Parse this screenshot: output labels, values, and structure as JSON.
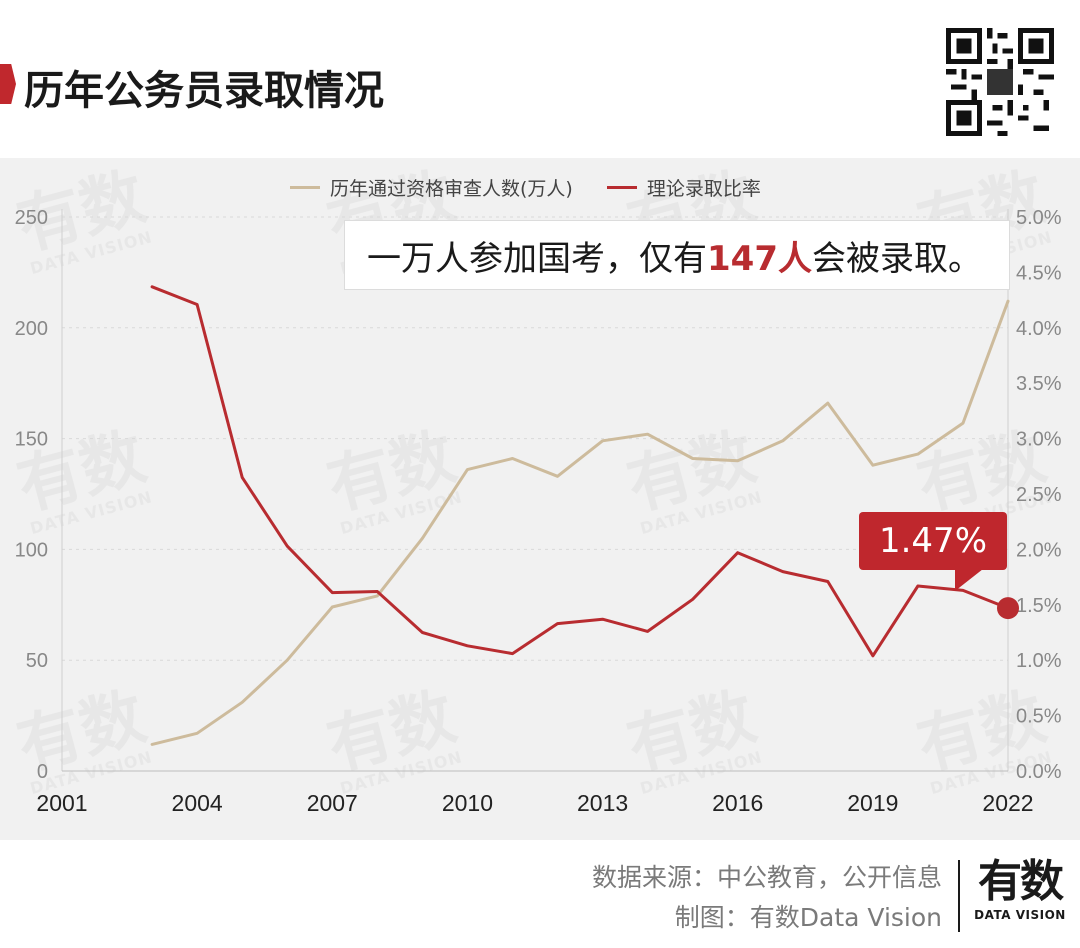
{
  "title": "历年公务员录取情况",
  "callout": {
    "prefix": "一万人参加国考，仅有",
    "highlight": "147人",
    "suffix": "会被录取。"
  },
  "badge": "1.47%",
  "source_line": "数据来源：中公教育，公开信息",
  "credit_line": "制图：有数Data Vision",
  "brand": {
    "cn": "有数",
    "en": "DATA VISION"
  },
  "watermark": {
    "cn": "有数",
    "en": "DATA VISION"
  },
  "colors": {
    "applicants": "#cdbb9c",
    "rate": "#b82c30",
    "badge": "#bf272d",
    "background": "#f1f1f1"
  },
  "chart_data": {
    "type": "line",
    "x": [
      2003,
      2004,
      2005,
      2006,
      2007,
      2008,
      2009,
      2010,
      2011,
      2012,
      2013,
      2014,
      2015,
      2016,
      2017,
      2018,
      2019,
      2020,
      2021,
      2022
    ],
    "x_ticks": [
      "2001",
      "2004",
      "2007",
      "2010",
      "2013",
      "2016",
      "2019",
      "2022"
    ],
    "xlim": [
      2001,
      2022
    ],
    "series": [
      {
        "name": "历年通过资格审查人数(万人)",
        "axis": "left",
        "values": [
          12,
          17,
          31,
          50,
          74,
          79,
          105,
          136,
          141,
          133,
          149,
          152,
          141,
          140,
          149,
          166,
          138,
          143,
          157,
          212
        ]
      },
      {
        "name": "理论录取比率",
        "axis": "right",
        "values": [
          0.0437,
          0.0421,
          0.0265,
          0.0203,
          0.0161,
          0.0162,
          0.0125,
          0.0113,
          0.0106,
          0.0133,
          0.0137,
          0.0126,
          0.0155,
          0.0197,
          0.018,
          0.0171,
          0.0104,
          0.0167,
          0.0163,
          0.0147
        ]
      }
    ],
    "y_left": {
      "ticks": [
        "0",
        "50",
        "100",
        "150",
        "200",
        "250"
      ],
      "ylim": [
        0,
        250
      ]
    },
    "y_right": {
      "ticks": [
        "0.0%",
        "0.5%",
        "1.0%",
        "1.5%",
        "2.0%",
        "2.5%",
        "3.0%",
        "3.5%",
        "4.0%",
        "4.5%",
        "5.0%"
      ],
      "ylim": [
        0,
        0.05
      ]
    },
    "grid": true,
    "legend": "top-center"
  }
}
